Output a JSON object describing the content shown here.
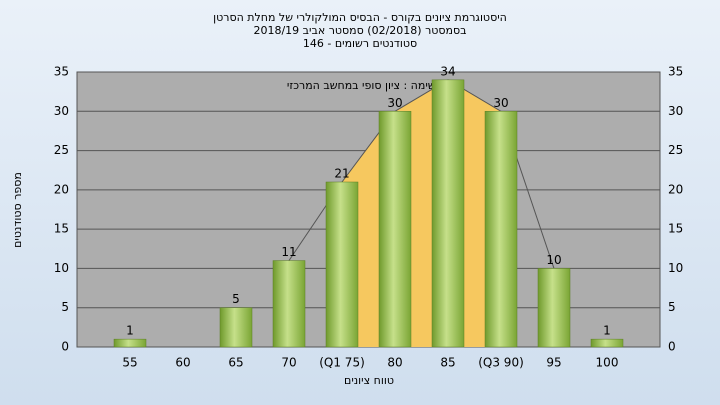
{
  "chart_data": {
    "type": "bar",
    "title": "היסטוגרמת ציונים בקורס - הבסיס המולקולרי של מחלת הסרטן",
    "subtitle": "בסמסטר  (02/2018)  סמסטר אביב  2018/19",
    "subtitle2": "סטודנטים רשומים - 146",
    "annotation": "משימה : ציון סופי במחשב המרכזי",
    "x_label": "טווח ציונים",
    "y_label": "מספר סטודנטים",
    "categories": [
      "55",
      "60",
      "65",
      "70",
      "(Q1 75)",
      "80",
      "85",
      "(Q3 90)",
      "95",
      "100"
    ],
    "values": [
      1,
      0,
      5,
      11,
      21,
      30,
      34,
      30,
      10,
      1
    ],
    "color": "#8db542",
    "ylim": [
      0,
      35
    ],
    "yticks": [
      0,
      5,
      10,
      15,
      20,
      25,
      30,
      35
    ],
    "grid": true
  }
}
